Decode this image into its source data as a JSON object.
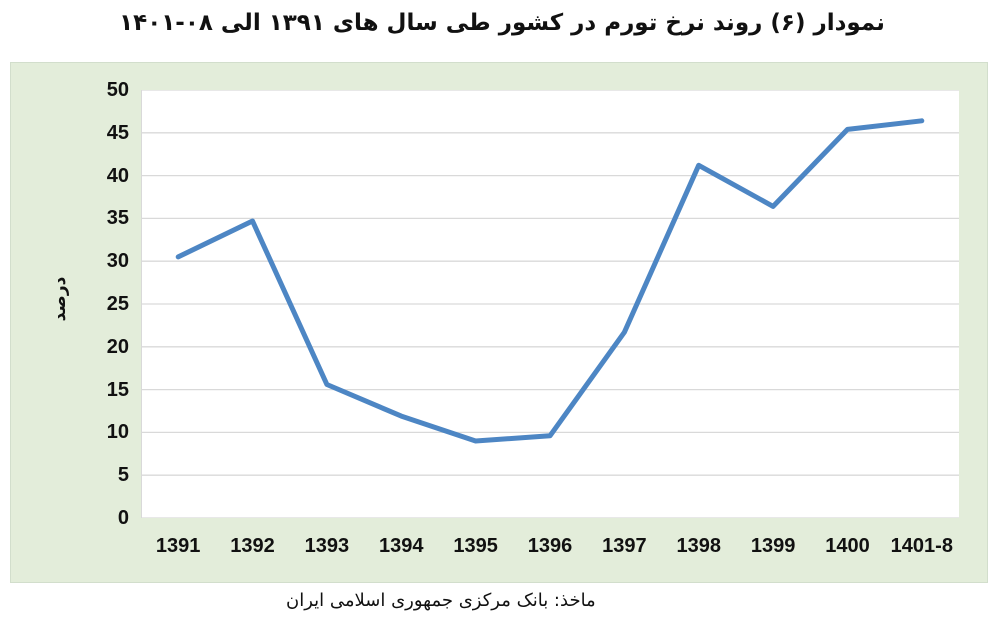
{
  "chart_data": {
    "type": "line",
    "title": "نمودار (۶) روند نرخ تورم در کشور طی سال های ۱۳۹۱ الی ۰۸-۱۴۰۱",
    "categories": [
      "1391",
      "1392",
      "1393",
      "1394",
      "1395",
      "1396",
      "1397",
      "1398",
      "1399",
      "1400",
      "1401-8"
    ],
    "values": [
      30.5,
      34.7,
      15.6,
      11.9,
      9.0,
      9.6,
      21.7,
      41.2,
      36.4,
      45.4,
      46.4
    ],
    "xlabel": "",
    "ylabel": "درصد",
    "ylim": [
      0,
      50
    ],
    "ytick_step": 5,
    "grid": true,
    "legend": "none",
    "line_color": "#4d86c4",
    "line_width": 5,
    "gridline_color": "#d9d9d9",
    "plot_background": "#ffffff",
    "panel_background": "#e3edda",
    "source": "ماخذ: بانک مرکزی جمهوری اسلامی ایران"
  }
}
